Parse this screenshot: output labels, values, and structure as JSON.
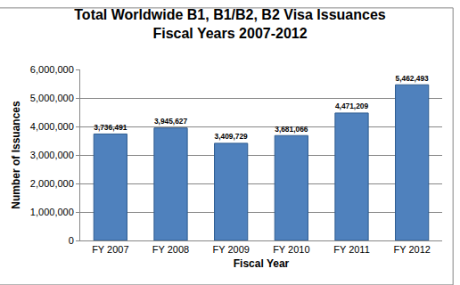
{
  "chart_data": {
    "type": "bar",
    "title": "Total Worldwide B1, B1/B2, B2 Visa Issuances\nFiscal Years 2007-2012",
    "x_label": "Fiscal Year",
    "y_label": "Number of Issuances",
    "categories": [
      "FY 2007",
      "FY 2008",
      "FY 2009",
      "FY 2010",
      "FY 2011",
      "FY 2012"
    ],
    "values": [
      3736491,
      3945627,
      3409729,
      3681066,
      4471209,
      5462493
    ],
    "value_labels": [
      "3,736,491",
      "3,945,627",
      "3,409,729",
      "3,681,066",
      "4,471,209",
      "5,462,493"
    ],
    "color": "#4f81bd",
    "ylim": [
      0,
      6000000
    ],
    "yticks": [
      0,
      {
        "value": 1000000,
        "label": "1,000,000"
      },
      {
        "value": 2000000,
        "label": "2,000,000"
      },
      {
        "value": 3000000,
        "label": "3,000,000"
      },
      {
        "value": 4000000,
        "label": "4,000,000"
      },
      {
        "value": 5000000,
        "label": "5,000,000"
      },
      {
        "value": 6000000,
        "label": "6,000,000"
      }
    ],
    "grid": true,
    "data_labels": true
  }
}
